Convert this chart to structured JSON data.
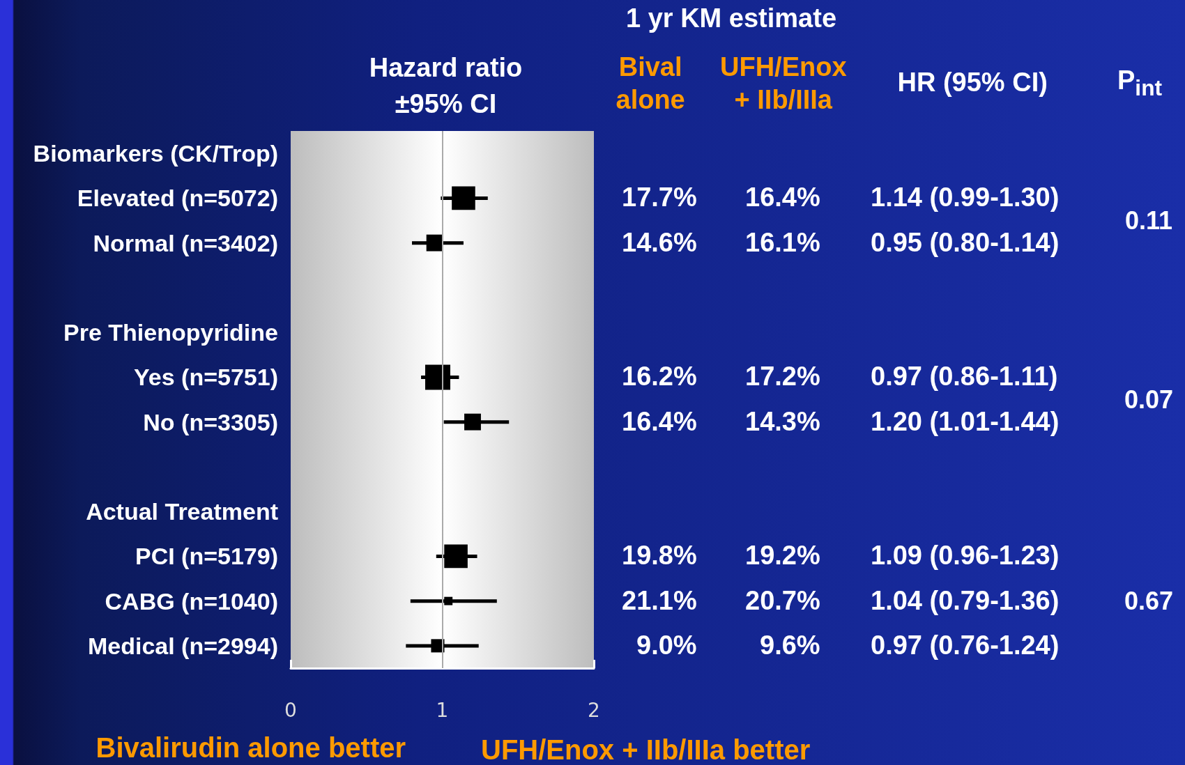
{
  "chart_data": {
    "type": "bubble",
    "title": "Hazard ratio\n±95% CI",
    "categories": [
      "Biomarkers (CK/Trop)",
      "Elevated (n=5072)",
      "Normal (n=3402)",
      null,
      "Pre Thienopyridine",
      "Yes (n=5751)",
      "No (n=3305)",
      null,
      "Actual Treatment",
      "PCI (n=5179)",
      "CABG (n=1040)",
      "Medical (n=2994)"
    ],
    "orientation": "horizontal",
    "series": [
      {
        "color": "#000000",
        "values": [
          null,
          1.14,
          0.95,
          null,
          null,
          0.97,
          1.2,
          null,
          null,
          1.09,
          1.04,
          0.97
        ],
        "errors": [
          null,
          [
            0.99,
            1.3
          ],
          [
            0.8,
            1.14
          ],
          null,
          null,
          [
            0.86,
            1.11
          ],
          [
            1.01,
            1.44
          ],
          null,
          null,
          [
            0.96,
            1.23
          ],
          [
            0.79,
            1.36
          ],
          [
            0.76,
            1.24
          ]
        ],
        "sizes": [
          null,
          0.87,
          0.44,
          null,
          null,
          1,
          0.44,
          null,
          null,
          0.87,
          0.11,
          0.28
        ],
        "value_labels": [
          null,
          "1.14 (0.99-1.30)",
          "0.95 (0.80-1.14)",
          null,
          null,
          "0.97 (0.86-1.11)",
          "1.20 (1.01-1.44)",
          null,
          null,
          "1.09 (0.96-1.23)",
          "1.04 (0.79-1.36)",
          "0.97 (0.76-1.24)"
        ]
      }
    ],
    "xlim": [
      0,
      2
    ],
    "xticks": [
      0,
      1,
      2
    ],
    "marker": "square",
    "grid": false,
    "ref_lines": [
      {
        "axis": "x",
        "value": 1,
        "color": "#aaaaaa"
      }
    ],
    "annotations": [
      "1 yr KM estimate",
      "Bival\nalone",
      "UFH/Enox\n+ IIb/IIIa",
      "HR (95% CI)",
      "P$_{int}$",
      "Bivalirudin alone better",
      "UFH/Enox + IIb/IIIa better",
      "0.11",
      "0.07",
      "0.67",
      "17.7%",
      "16.4%",
      "14.6%",
      "16.1%",
      "16.2%",
      "17.2%",
      "16.4%",
      "14.3%",
      "19.8%",
      "19.2%",
      "21.1%",
      "20.7%",
      "9.0%",
      "9.6%"
    ]
  }
}
